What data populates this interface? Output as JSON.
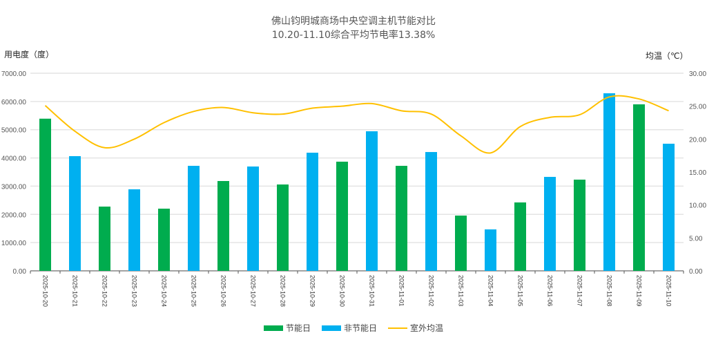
{
  "chart_data": {
    "type": "bar",
    "title": "佛山钧明城商场中央空调主机节能对比",
    "subtitle": "10.20-11.10综合平均节电率13.38%",
    "ylabel": "用电度（度）",
    "y2label": "均温（℃）",
    "ylim": [
      0,
      7000
    ],
    "y2lim": [
      0,
      30
    ],
    "yticks": [
      "0.00",
      "1000.00",
      "2000.00",
      "3000.00",
      "4000.00",
      "5000.00",
      "6000.00",
      "7000.00"
    ],
    "y2ticks": [
      "0.00",
      "5.00",
      "10.00",
      "15.00",
      "20.00",
      "25.00",
      "30.00"
    ],
    "categories": [
      "2025-10-20",
      "2025-10-21",
      "2025-10-22",
      "2025-10-23",
      "2025-10-24",
      "2025-10-25",
      "2025-10-26",
      "2025-10-27",
      "2025-10-28",
      "2025-10-29",
      "2025-10-30",
      "2025-10-31",
      "2025-11-01",
      "2025-11-02",
      "2025-11-03",
      "2025-11-04",
      "2025-11-05",
      "2025-11-06",
      "2025-11-07",
      "2025-11-08",
      "2025-11-09",
      "2025-11-10"
    ],
    "values": [
      5390,
      4063,
      2276,
      2888,
      2203,
      3720,
      3182,
      3696,
      3059,
      4185,
      3867,
      4944,
      3720,
      4209,
      1958,
      1468,
      2423,
      3328,
      3231,
      6290,
      5898,
      4503
    ],
    "day_type": [
      "saving",
      "normal",
      "saving",
      "normal",
      "saving",
      "normal",
      "saving",
      "normal",
      "saving",
      "normal",
      "saving",
      "normal",
      "saving",
      "normal",
      "saving",
      "normal",
      "saving",
      "normal",
      "saving",
      "normal",
      "saving",
      "normal"
    ],
    "temperature": [
      25.1,
      21.2,
      18.7,
      20.0,
      22.5,
      24.2,
      24.8,
      24.0,
      23.8,
      24.7,
      25.0,
      25.4,
      24.3,
      23.8,
      20.5,
      17.9,
      21.9,
      23.3,
      23.7,
      26.4,
      26.1,
      24.3
    ],
    "legend": [
      {
        "name": "节能日",
        "color": "#00ac4e"
      },
      {
        "name": "非节能日",
        "color": "#00b0f0"
      },
      {
        "name": "室外均温",
        "color": "#ffc000"
      }
    ],
    "legend_position": "bottom",
    "grid": true
  }
}
